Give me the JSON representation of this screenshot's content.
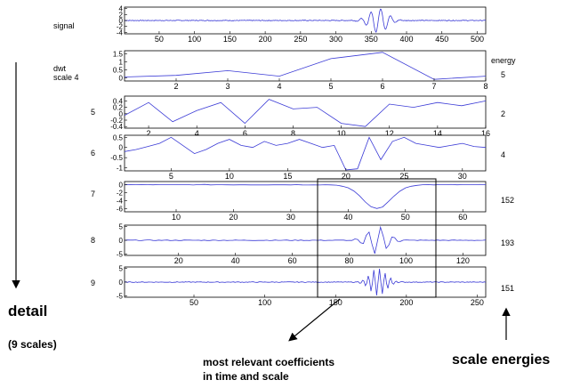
{
  "energy_header": "energy",
  "labels": {
    "detail": "detail",
    "scales": "(9 scales)",
    "relevant_line1": "most relevant coefficients",
    "relevant_line2": "in time and scale",
    "scale_energies": "scale energies"
  },
  "chart_data": [
    {
      "type": "line",
      "row_label": "signal",
      "energy": "",
      "xlim": [
        1,
        512
      ],
      "ylim": [
        -4.5,
        4.5
      ],
      "x_ticks": [
        50,
        100,
        150,
        200,
        250,
        300,
        350,
        400,
        450,
        500
      ],
      "y_ticks": [
        4,
        2,
        0,
        -2,
        -4
      ],
      "generator": {
        "kind": "burst",
        "n": 512,
        "center": 360,
        "width": 18,
        "amp": 4,
        "freq": 0.45,
        "noise": 0.25
      }
    },
    {
      "type": "line",
      "row_label": "dwt\nscale 4",
      "energy": "5",
      "xlim": [
        1,
        8
      ],
      "ylim": [
        -0.2,
        1.7
      ],
      "x_ticks": [
        2,
        3,
        4,
        5,
        6,
        7,
        8
      ],
      "y_ticks": [
        1.5,
        1,
        0.5,
        0
      ],
      "x": [
        1,
        2,
        3,
        4,
        5,
        6,
        7,
        8
      ],
      "y": [
        0.05,
        0.15,
        0.45,
        0.1,
        1.2,
        1.6,
        -0.1,
        0.1
      ]
    },
    {
      "type": "line",
      "row_label": "5",
      "energy": "2",
      "xlim": [
        1,
        16
      ],
      "ylim": [
        -0.45,
        0.55
      ],
      "x_ticks": [
        2,
        4,
        6,
        8,
        10,
        12,
        14,
        16
      ],
      "y_ticks": [
        0.4,
        0.2,
        0,
        -0.2,
        -0.4
      ],
      "x": [
        1,
        2,
        3,
        4,
        5,
        6,
        7,
        8,
        9,
        10,
        11,
        12,
        13,
        14,
        15,
        16
      ],
      "y": [
        -0.05,
        0.35,
        -0.25,
        0.1,
        0.35,
        -0.3,
        0.45,
        0.15,
        0.2,
        -0.3,
        -0.4,
        0.3,
        0.2,
        0.35,
        0.25,
        0.4
      ]
    },
    {
      "type": "line",
      "row_label": "6",
      "energy": "4",
      "xlim": [
        1,
        32
      ],
      "ylim": [
        -1.15,
        0.6
      ],
      "x_ticks": [
        5,
        10,
        15,
        20,
        25,
        30
      ],
      "y_ticks": [
        0.5,
        0,
        -0.5,
        -1
      ],
      "x": [
        1,
        2,
        3,
        4,
        5,
        6,
        7,
        8,
        9,
        10,
        11,
        12,
        13,
        14,
        15,
        16,
        17,
        18,
        19,
        20,
        21,
        22,
        23,
        24,
        25,
        26,
        27,
        28,
        29,
        30,
        31,
        32
      ],
      "y": [
        -0.2,
        -0.1,
        0.05,
        0.2,
        0.5,
        0.1,
        -0.3,
        -0.1,
        0.2,
        0.4,
        0.1,
        0.0,
        0.3,
        0.1,
        0.2,
        0.4,
        0.2,
        0.0,
        0.1,
        -1.1,
        -1.05,
        0.5,
        -0.6,
        0.3,
        0.5,
        0.2,
        0.1,
        0.0,
        0.1,
        0.2,
        0.05,
        0.0
      ]
    },
    {
      "type": "line",
      "row_label": "7",
      "energy": "152",
      "xlim": [
        1,
        64
      ],
      "ylim": [
        -6.8,
        0.8
      ],
      "x_ticks": [
        10,
        20,
        30,
        40,
        50,
        60
      ],
      "y_ticks": [
        0,
        -2,
        -4,
        -6
      ],
      "generator": {
        "kind": "dip",
        "n": 64,
        "center": 45,
        "width": 3.5,
        "amp": -6,
        "noise": 0.15
      }
    },
    {
      "type": "line",
      "row_label": "8",
      "energy": "193",
      "xlim": [
        1,
        128
      ],
      "ylim": [
        -5.5,
        5.5
      ],
      "x_ticks": [
        20,
        40,
        60,
        80,
        100,
        120
      ],
      "y_ticks": [
        5,
        0,
        -5
      ],
      "generator": {
        "kind": "burst",
        "n": 128,
        "center": 90,
        "width": 5,
        "amp": 5,
        "freq": 1.4,
        "noise": 0.25
      }
    },
    {
      "type": "line",
      "row_label": "9",
      "energy": "151",
      "xlim": [
        1,
        256
      ],
      "ylim": [
        -5.5,
        5.5
      ],
      "x_ticks": [
        50,
        100,
        150,
        200,
        250
      ],
      "y_ticks": [
        5,
        0,
        -5
      ],
      "generator": {
        "kind": "burst",
        "n": 256,
        "center": 180,
        "width": 8,
        "amp": 5,
        "freq": 1.6,
        "noise": 0.25
      }
    }
  ]
}
